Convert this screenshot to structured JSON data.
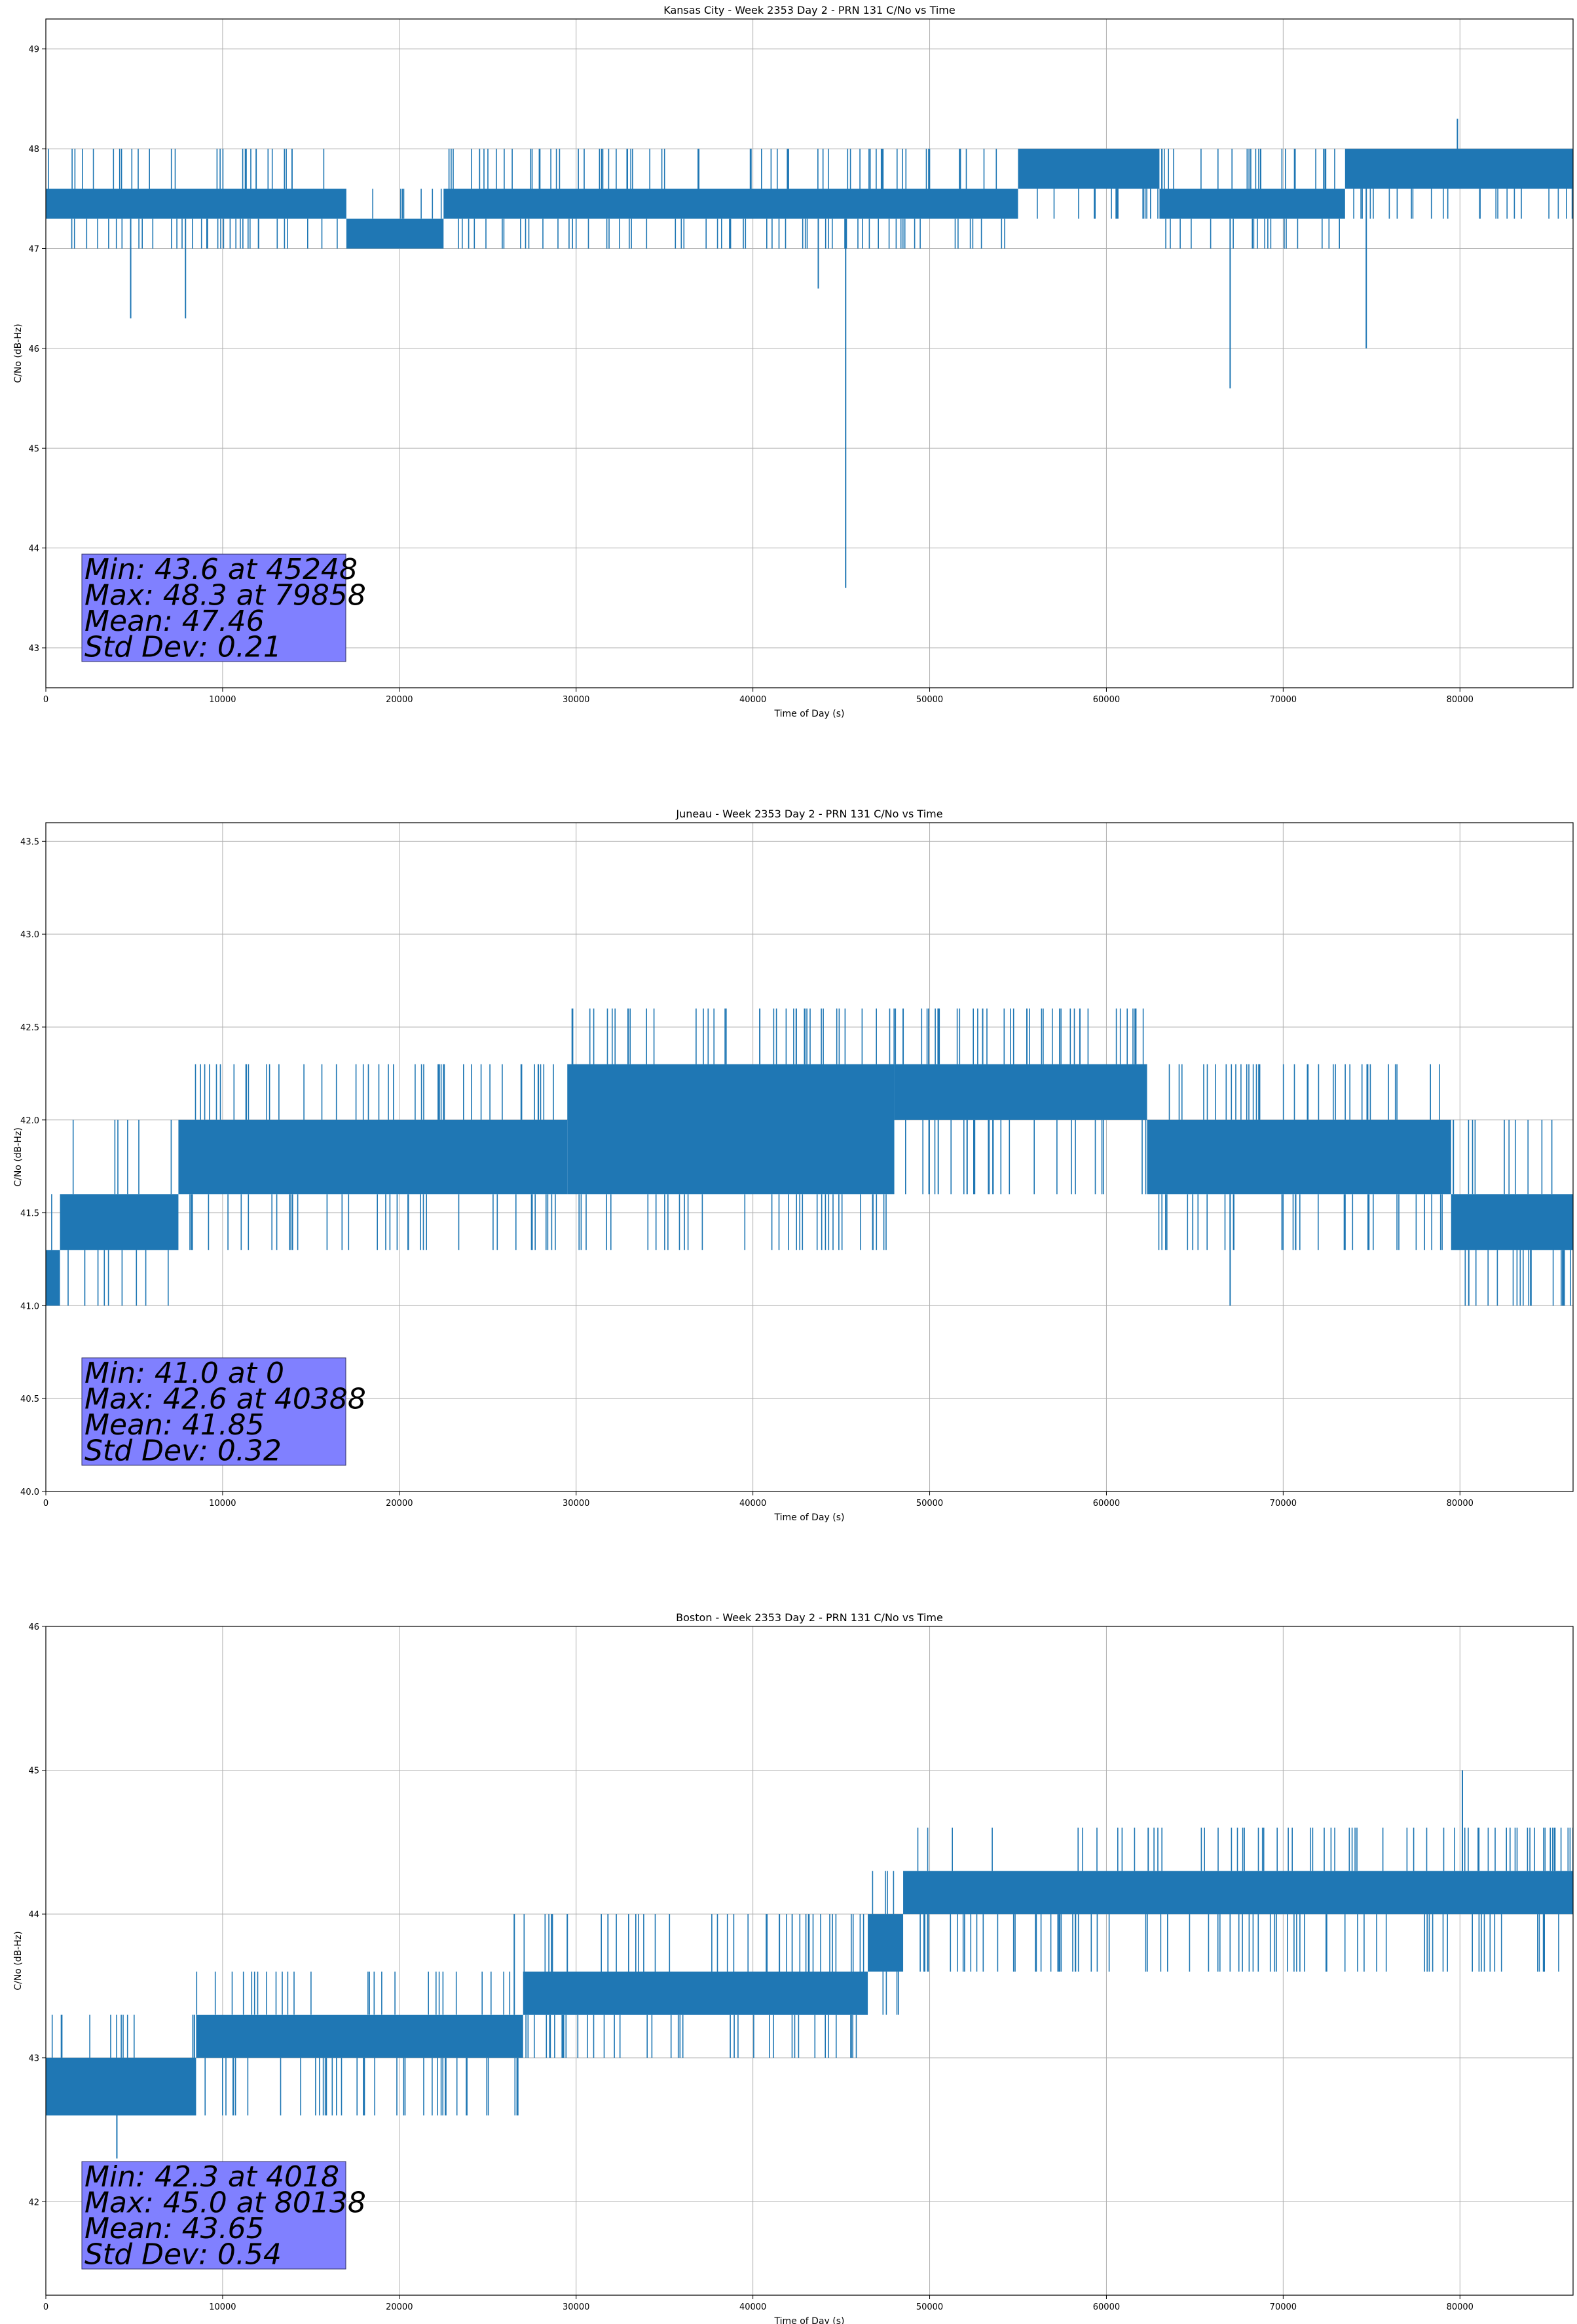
{
  "chart_data": [
    {
      "type": "line",
      "title": "Kansas City - Week 2353 Day 2 - PRN 131 C/No vs Time",
      "xlabel": "Time of Day (s)",
      "ylabel": "C/No (dB-Hz)",
      "xlim": [
        0,
        86400
      ],
      "ylim": [
        42.6,
        49.3
      ],
      "xticks": [
        0,
        10000,
        20000,
        30000,
        40000,
        50000,
        60000,
        70000,
        80000
      ],
      "yticks": [
        43,
        44,
        45,
        46,
        47,
        48,
        49
      ],
      "ytick_labels": [
        "43",
        "44",
        "45",
        "46",
        "47",
        "48",
        "49"
      ],
      "grid": true,
      "series_color": "#1f77b4",
      "band_segments": [
        {
          "x0": 0,
          "x1": 17000,
          "lo": 47.3,
          "hi": 47.6
        },
        {
          "x0": 17000,
          "x1": 22500,
          "lo": 47.0,
          "hi": 47.3
        },
        {
          "x0": 22500,
          "x1": 55000,
          "lo": 47.3,
          "hi": 47.6
        },
        {
          "x0": 55000,
          "x1": 63000,
          "lo": 47.6,
          "hi": 48.0
        },
        {
          "x0": 63000,
          "x1": 73500,
          "lo": 47.3,
          "hi": 47.6
        },
        {
          "x0": 73500,
          "x1": 86400,
          "lo": 47.6,
          "hi": 48.0
        }
      ],
      "levels": [
        47.0,
        47.3,
        47.6,
        48.0
      ],
      "spikes": [
        {
          "x": 4800,
          "y": 46.3
        },
        {
          "x": 7900,
          "y": 46.3
        },
        {
          "x": 43700,
          "y": 46.6
        },
        {
          "x": 45248,
          "y": 43.6
        },
        {
          "x": 67000,
          "y": 45.6
        },
        {
          "x": 74700,
          "y": 46.0
        },
        {
          "x": 79858,
          "y": 48.3
        }
      ],
      "stats": [
        "Min: 43.6 at 45248",
        "Max: 48.3 at 79858",
        "Mean: 47.46",
        "Std Dev: 0.21"
      ]
    },
    {
      "type": "line",
      "title": "Juneau - Week 2353 Day 2 - PRN 131 C/No vs Time",
      "xlabel": "Time of Day (s)",
      "ylabel": "C/No (dB-Hz)",
      "xlim": [
        0,
        86400
      ],
      "ylim": [
        40.0,
        43.6
      ],
      "xticks": [
        0,
        10000,
        20000,
        30000,
        40000,
        50000,
        60000,
        70000,
        80000
      ],
      "yticks": [
        40.0,
        40.5,
        41.0,
        41.5,
        42.0,
        42.5,
        43.0,
        43.5
      ],
      "ytick_labels": [
        "40.0",
        "40.5",
        "41.0",
        "41.5",
        "42.0",
        "42.5",
        "43.0",
        "43.5"
      ],
      "grid": true,
      "series_color": "#1f77b4",
      "band_segments": [
        {
          "x0": 0,
          "x1": 800,
          "lo": 41.0,
          "hi": 41.3
        },
        {
          "x0": 800,
          "x1": 7500,
          "lo": 41.3,
          "hi": 41.6
        },
        {
          "x0": 7500,
          "x1": 29500,
          "lo": 41.6,
          "hi": 42.0
        },
        {
          "x0": 29500,
          "x1": 48000,
          "lo": 41.6,
          "hi": 42.3
        },
        {
          "x0": 48000,
          "x1": 62300,
          "lo": 42.0,
          "hi": 42.3
        },
        {
          "x0": 62300,
          "x1": 79500,
          "lo": 41.6,
          "hi": 42.0
        },
        {
          "x0": 79500,
          "x1": 86400,
          "lo": 41.3,
          "hi": 41.6
        }
      ],
      "levels": [
        41.0,
        41.3,
        41.6,
        42.0,
        42.3,
        42.6
      ],
      "spikes": [
        {
          "x": 40388,
          "y": 42.6
        },
        {
          "x": 48500,
          "y": 42.6
        },
        {
          "x": 50500,
          "y": 42.6
        },
        {
          "x": 53000,
          "y": 42.6
        },
        {
          "x": 55500,
          "y": 42.6
        },
        {
          "x": 58500,
          "y": 42.6
        },
        {
          "x": 67000,
          "y": 41.0
        },
        {
          "x": 80500,
          "y": 41.0
        },
        {
          "x": 84000,
          "y": 41.0
        }
      ],
      "stats": [
        "Min: 41.0 at 0",
        "Max: 42.6 at 40388",
        "Mean: 41.85",
        "Std Dev: 0.32"
      ]
    },
    {
      "type": "line",
      "title": "Boston - Week 2353 Day 2 - PRN 131 C/No vs Time",
      "xlabel": "Time of Day (s)",
      "ylabel": "C/No (dB-Hz)",
      "xlim": [
        0,
        86400
      ],
      "ylim": [
        41.35,
        46.0
      ],
      "xticks": [
        0,
        10000,
        20000,
        30000,
        40000,
        50000,
        60000,
        70000,
        80000
      ],
      "yticks": [
        42,
        43,
        44,
        45,
        46
      ],
      "ytick_labels": [
        "42",
        "43",
        "44",
        "45",
        "46"
      ],
      "grid": true,
      "series_color": "#1f77b4",
      "band_segments": [
        {
          "x0": 0,
          "x1": 8500,
          "lo": 42.6,
          "hi": 43.0
        },
        {
          "x0": 8500,
          "x1": 27000,
          "lo": 43.0,
          "hi": 43.3
        },
        {
          "x0": 27000,
          "x1": 46500,
          "lo": 43.3,
          "hi": 43.6
        },
        {
          "x0": 46500,
          "x1": 48500,
          "lo": 43.6,
          "hi": 44.0
        },
        {
          "x0": 48500,
          "x1": 86400,
          "lo": 44.0,
          "hi": 44.3
        }
      ],
      "levels": [
        42.6,
        43.0,
        43.3,
        43.6,
        44.0,
        44.3,
        44.6
      ],
      "spikes": [
        {
          "x": 4018,
          "y": 42.3
        },
        {
          "x": 80138,
          "y": 45.0
        },
        {
          "x": 41500,
          "y": 44.0
        },
        {
          "x": 29500,
          "y": 44.0
        },
        {
          "x": 26500,
          "y": 44.0
        }
      ],
      "stats": [
        "Min: 42.3 at 4018",
        "Max: 45.0 at 80138",
        "Mean: 43.65",
        "Std Dev: 0.54"
      ]
    }
  ]
}
